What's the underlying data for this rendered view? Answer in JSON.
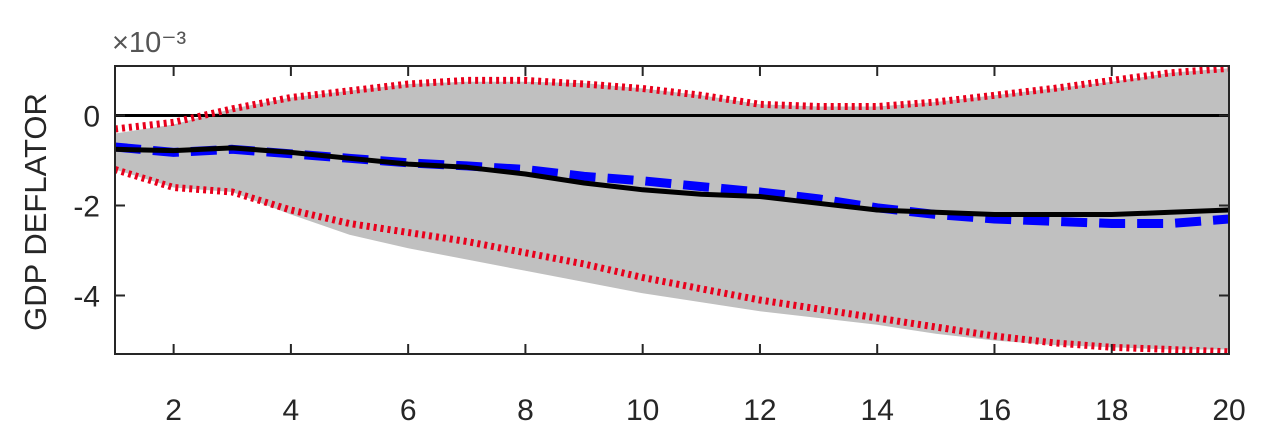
{
  "chart_data": {
    "type": "line",
    "ylabel": "GDP DEFLATOR",
    "y_exponent_label": "×10⁻³",
    "xlim": [
      1,
      20
    ],
    "ylim": [
      -5.3,
      1.1
    ],
    "xticks": [
      2,
      4,
      6,
      8,
      10,
      12,
      14,
      16,
      18,
      20
    ],
    "yticks": [
      0,
      -2,
      -4
    ],
    "grid": false,
    "legend": "none",
    "x": [
      1,
      2,
      3,
      4,
      5,
      6,
      7,
      8,
      9,
      10,
      11,
      12,
      13,
      14,
      15,
      16,
      17,
      18,
      19,
      20
    ],
    "series": [
      {
        "role": "band-upper",
        "color": "#e8001c",
        "style": "dotted",
        "values": [
          -0.3,
          -0.15,
          0.15,
          0.4,
          0.55,
          0.7,
          0.78,
          0.78,
          0.7,
          0.6,
          0.45,
          0.25,
          0.2,
          0.2,
          0.3,
          0.45,
          0.6,
          0.78,
          0.95,
          1.05
        ]
      },
      {
        "role": "band-lower",
        "color": "#e8001c",
        "style": "dotted",
        "values": [
          -1.2,
          -1.6,
          -1.7,
          -2.1,
          -2.4,
          -2.6,
          -2.8,
          -3.05,
          -3.3,
          -3.6,
          -3.85,
          -4.1,
          -4.3,
          -4.5,
          -4.7,
          -4.9,
          -5.05,
          -5.15,
          -5.2,
          -5.25
        ]
      },
      {
        "role": "median",
        "color": "#0000ff",
        "style": "dashed",
        "values": [
          -0.7,
          -0.82,
          -0.75,
          -0.85,
          -0.95,
          -1.05,
          -1.12,
          -1.2,
          -1.35,
          -1.45,
          -1.58,
          -1.7,
          -1.85,
          -2.05,
          -2.2,
          -2.3,
          -2.35,
          -2.4,
          -2.4,
          -2.3
        ]
      },
      {
        "role": "point-estimate",
        "color": "#000000",
        "style": "solid",
        "values": [
          -0.75,
          -0.78,
          -0.72,
          -0.82,
          -0.95,
          -1.08,
          -1.15,
          -1.3,
          -1.5,
          -1.65,
          -1.75,
          -1.8,
          -1.95,
          -2.1,
          -2.15,
          -2.2,
          -2.2,
          -2.2,
          -2.15,
          -2.1
        ]
      }
    ],
    "shaded_band": {
      "color": "#c0c0c0",
      "upper": [
        -0.4,
        -0.2,
        0.15,
        0.4,
        0.55,
        0.7,
        0.75,
        0.75,
        0.72,
        0.6,
        0.45,
        0.25,
        0.2,
        0.2,
        0.3,
        0.45,
        0.6,
        0.75,
        0.95,
        1.05
      ],
      "lower": [
        -1.2,
        -1.6,
        -1.7,
        -2.2,
        -2.65,
        -2.95,
        -3.2,
        -3.45,
        -3.7,
        -3.95,
        -4.15,
        -4.35,
        -4.5,
        -4.65,
        -4.85,
        -5.0,
        -5.1,
        -5.15,
        -5.2,
        -5.2
      ]
    },
    "zero_line": {
      "value": 0,
      "color": "#000000"
    }
  }
}
